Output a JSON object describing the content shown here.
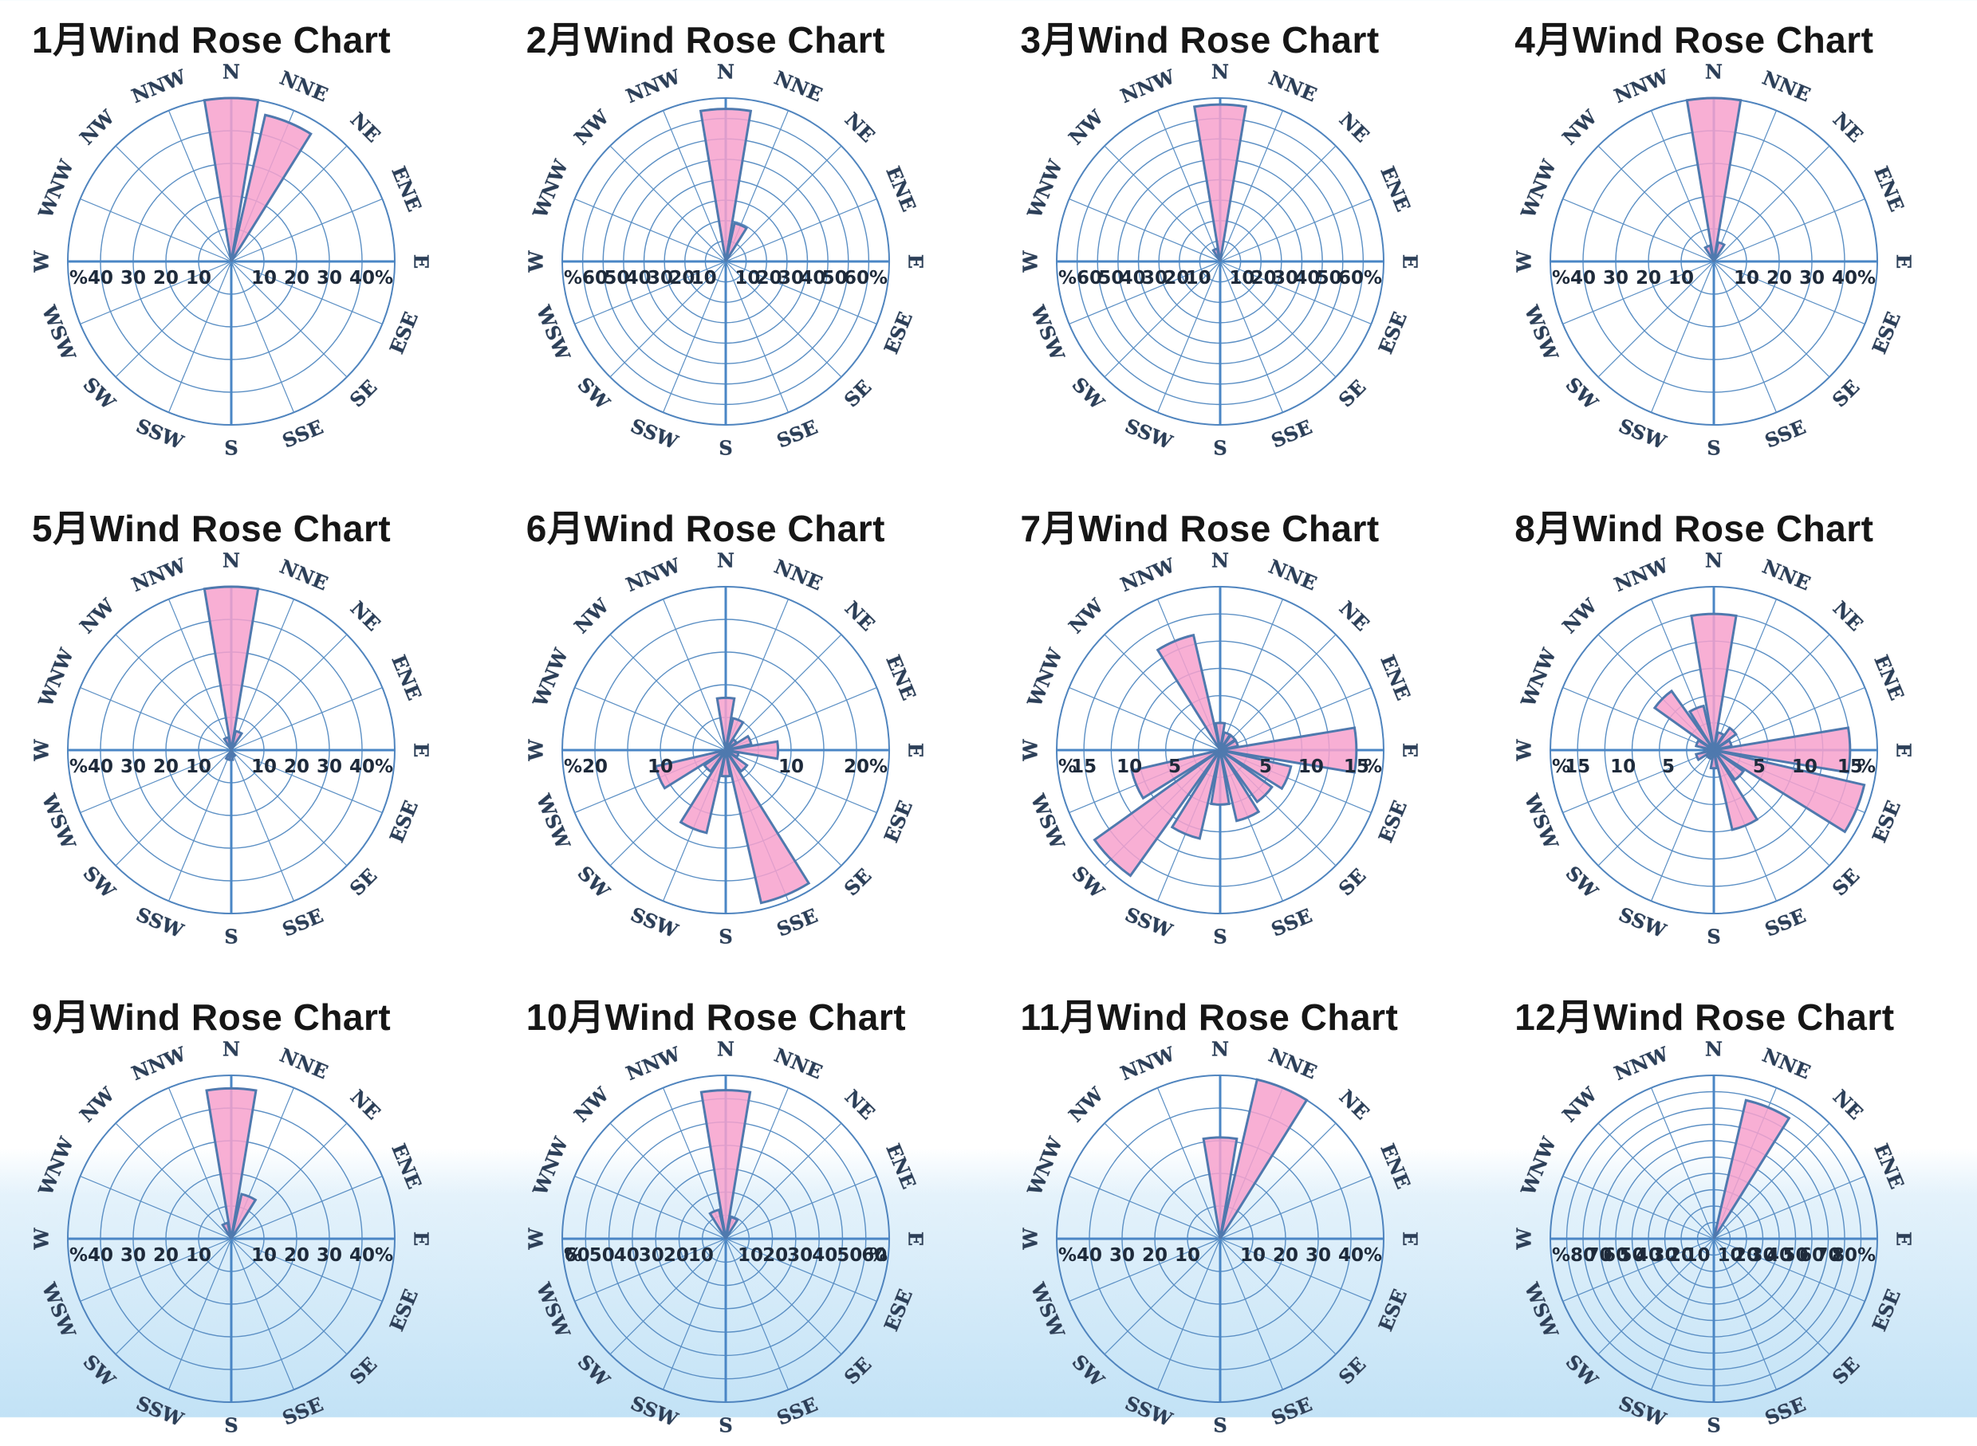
{
  "page": {
    "background_accent": "#c2e2f6"
  },
  "style": {
    "petal_color": "#f7a1cd",
    "petal_stroke": "#4f79ae",
    "grid_color": "#5b8fc4"
  },
  "chart_data": [
    {
      "type": "polar-bar",
      "title": "1月Wind Rose Chart",
      "directions": [
        "N",
        "NNE",
        "NE",
        "ENE",
        "E",
        "ESE",
        "SE",
        "SSE",
        "S",
        "SSW",
        "SW",
        "WSW",
        "W",
        "WNW",
        "NW",
        "NNW"
      ],
      "values": [
        50,
        46,
        0,
        0,
        0,
        0,
        0,
        0,
        0,
        0,
        0,
        0,
        0,
        0,
        0,
        0
      ],
      "rmax": 50,
      "ring_count": 5,
      "tick_values": [
        10,
        20,
        30,
        40,
        50
      ],
      "unit": "%"
    },
    {
      "type": "polar-bar",
      "title": "2月Wind Rose Chart",
      "directions": [
        "N",
        "NNE",
        "NE",
        "ENE",
        "E",
        "ESE",
        "SE",
        "SSE",
        "S",
        "SSW",
        "SW",
        "WSW",
        "W",
        "WNW",
        "NW",
        "NNW"
      ],
      "values": [
        70,
        18,
        0,
        0,
        0,
        0,
        0,
        0,
        0,
        0,
        0,
        0,
        0,
        0,
        0,
        0
      ],
      "rmax": 75,
      "ring_count": 8,
      "tick_values": [
        10,
        20,
        30,
        40,
        50,
        60,
        70
      ],
      "unit": "%"
    },
    {
      "type": "polar-bar",
      "title": "3月Wind Rose Chart",
      "directions": [
        "N",
        "NNE",
        "NE",
        "ENE",
        "E",
        "ESE",
        "SE",
        "SSE",
        "S",
        "SSW",
        "SW",
        "WSW",
        "W",
        "WNW",
        "NW",
        "NNW"
      ],
      "values": [
        72,
        0,
        0,
        0,
        0,
        0,
        0,
        0,
        0,
        0,
        0,
        0,
        0,
        0,
        0,
        6
      ],
      "rmax": 75,
      "ring_count": 8,
      "tick_values": [
        10,
        20,
        30,
        40,
        50,
        60,
        70
      ],
      "unit": "%"
    },
    {
      "type": "polar-bar",
      "title": "4月Wind Rose Chart",
      "directions": [
        "N",
        "NNE",
        "NE",
        "ENE",
        "E",
        "ESE",
        "SE",
        "SSE",
        "S",
        "SSW",
        "SW",
        "WSW",
        "W",
        "WNW",
        "NW",
        "NNW"
      ],
      "values": [
        50,
        6,
        0,
        0,
        0,
        0,
        0,
        0,
        0,
        0,
        0,
        0,
        0,
        0,
        0,
        5
      ],
      "rmax": 50,
      "ring_count": 5,
      "tick_values": [
        10,
        20,
        30,
        40,
        50
      ],
      "unit": "%"
    },
    {
      "type": "polar-bar",
      "title": "5月Wind Rose Chart",
      "directions": [
        "N",
        "NNE",
        "NE",
        "ENE",
        "E",
        "ESE",
        "SE",
        "SSE",
        "S",
        "SSW",
        "SW",
        "WSW",
        "W",
        "WNW",
        "NW",
        "NNW"
      ],
      "values": [
        50,
        6,
        0,
        0,
        0,
        0,
        0,
        2,
        3,
        3,
        0,
        0,
        0,
        0,
        0,
        4
      ],
      "rmax": 50,
      "ring_count": 5,
      "tick_values": [
        10,
        20,
        30,
        40,
        50
      ],
      "unit": "%"
    },
    {
      "type": "polar-bar",
      "title": "6月Wind Rose Chart",
      "directions": [
        "N",
        "NNE",
        "NE",
        "ENE",
        "E",
        "ESE",
        "SE",
        "SSE",
        "S",
        "SSW",
        "SW",
        "WSW",
        "W",
        "WNW",
        "NW",
        "NNW"
      ],
      "values": [
        8,
        5,
        2,
        4,
        8,
        2,
        4,
        24,
        4,
        13,
        4,
        11,
        0,
        0,
        0,
        0
      ],
      "rmax": 25,
      "ring_count": 5,
      "tick_values": [
        10,
        20
      ],
      "unit": "%"
    },
    {
      "type": "polar-bar",
      "title": "7月Wind Rose Chart",
      "directions": [
        "N",
        "NNE",
        "NE",
        "ENE",
        "E",
        "ESE",
        "SE",
        "SSE",
        "S",
        "SSW",
        "SW",
        "WSW",
        "W",
        "WNW",
        "NW",
        "NNW"
      ],
      "values": [
        3,
        2,
        2,
        2,
        15,
        8,
        7,
        8,
        6,
        10,
        17,
        10,
        0,
        0,
        0,
        13
      ],
      "rmax": 18,
      "ring_count": 6,
      "tick_values": [
        5,
        10,
        15
      ],
      "unit": "%"
    },
    {
      "type": "polar-bar",
      "title": "8月Wind Rose Chart",
      "directions": [
        "N",
        "NNE",
        "NE",
        "ENE",
        "E",
        "ESE",
        "SE",
        "SSE",
        "S",
        "SSW",
        "SW",
        "WSW",
        "W",
        "WNW",
        "NW",
        "NNW"
      ],
      "values": [
        15,
        2,
        3,
        2,
        15,
        17,
        4,
        9,
        2,
        1,
        1,
        2,
        1,
        2,
        8,
        5
      ],
      "rmax": 18,
      "ring_count": 6,
      "tick_values": [
        5,
        10,
        15
      ],
      "unit": "%"
    },
    {
      "type": "polar-bar",
      "title": "9月Wind Rose Chart",
      "directions": [
        "N",
        "NNE",
        "NE",
        "ENE",
        "E",
        "ESE",
        "SE",
        "SSE",
        "S",
        "SSW",
        "SW",
        "WSW",
        "W",
        "WNW",
        "NW",
        "NNW"
      ],
      "values": [
        46,
        14,
        0,
        0,
        0,
        0,
        0,
        0,
        0,
        0,
        0,
        0,
        0,
        0,
        0,
        5
      ],
      "rmax": 50,
      "ring_count": 5,
      "tick_values": [
        10,
        20,
        30,
        40,
        50
      ],
      "unit": "%"
    },
    {
      "type": "polar-bar",
      "title": "10月Wind Rose Chart",
      "directions": [
        "N",
        "NNE",
        "NE",
        "ENE",
        "E",
        "ESE",
        "SE",
        "SSE",
        "S",
        "SSW",
        "SW",
        "WSW",
        "W",
        "WNW",
        "NW",
        "NNW"
      ],
      "values": [
        60,
        9,
        0,
        0,
        0,
        0,
        0,
        0,
        0,
        0,
        0,
        0,
        0,
        0,
        0,
        12
      ],
      "rmax": 66,
      "ring_count": 7,
      "tick_values": [
        10,
        20,
        30,
        40,
        50,
        60
      ],
      "unit": "%"
    },
    {
      "type": "polar-bar",
      "title": "11月Wind Rose Chart",
      "directions": [
        "N",
        "NNE",
        "NE",
        "ENE",
        "E",
        "ESE",
        "SE",
        "SSE",
        "S",
        "SSW",
        "SW",
        "WSW",
        "W",
        "WNW",
        "NW",
        "NNW"
      ],
      "values": [
        31,
        53,
        0,
        0,
        0,
        0,
        0,
        0,
        0,
        0,
        0,
        0,
        0,
        0,
        0,
        0
      ],
      "rmax": 50,
      "ring_count": 5,
      "tick_values": [
        10,
        20,
        30,
        40,
        50
      ],
      "unit": "%"
    },
    {
      "type": "polar-bar",
      "title": "12月Wind Rose Chart",
      "directions": [
        "N",
        "NNE",
        "NE",
        "ENE",
        "E",
        "ESE",
        "SE",
        "SSE",
        "S",
        "SSW",
        "SW",
        "WSW",
        "W",
        "WNW",
        "NW",
        "NNW"
      ],
      "values": [
        0,
        87,
        0,
        0,
        0,
        0,
        0,
        0,
        0,
        0,
        0,
        0,
        0,
        0,
        0,
        0
      ],
      "rmax": 100,
      "ring_count": 10,
      "tick_values": [
        10,
        20,
        30,
        40,
        50,
        60,
        70,
        80
      ],
      "unit": "%"
    }
  ]
}
